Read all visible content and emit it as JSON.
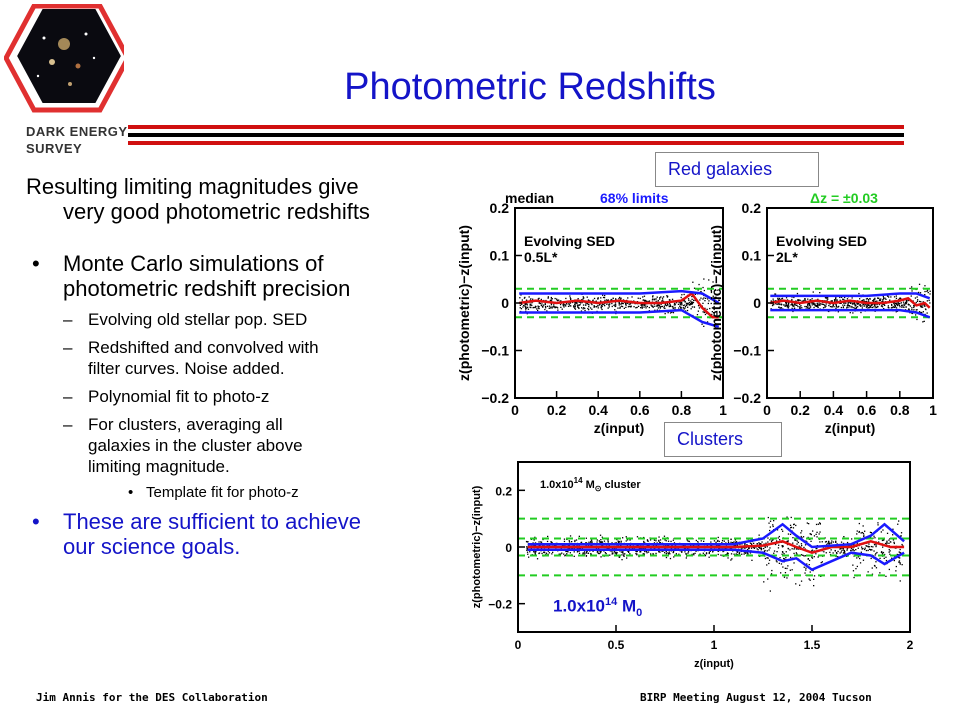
{
  "header": {
    "title": "Photometric Redshifts",
    "org_line1": "DARK ENERGY",
    "org_line2": "SURVEY",
    "logo_icon": "des-hexagon-galaxy-logo",
    "rule_colors": [
      "#d01010",
      "#000000",
      "#d01010"
    ]
  },
  "body": {
    "lead_line1": "Resulting limiting magnitudes give",
    "lead_line2": "very good photometric redshifts",
    "bullet1_line1": "Monte Carlo simulations of",
    "bullet1_line2": "photometric redshift precision",
    "sub1": "Evolving old stellar pop. SED",
    "sub2_line1": "Redshifted and convolved with",
    "sub2_line2": "filter curves. Noise added.",
    "sub3": "Polynomial fit to photo-z",
    "sub4_line1": "For clusters, averaging all",
    "sub4_line2": "galaxies in the cluster above",
    "sub4_line3": "limiting magnitude.",
    "subsub1": "Template fit for photo-z",
    "conclusion_line1": "These are sufficient to achieve",
    "conclusion_line2": "our science goals."
  },
  "figure": {
    "red_label": "Red galaxies",
    "clusters_label": "Clusters",
    "mass_prefix": "1.0x10",
    "mass_exp": "14",
    "mass_unit": "M",
    "mass_sub": "0",
    "legend_median": "median",
    "legend_limits": "68% limits",
    "legend_dz": "Δz = ±0.03",
    "colors": {
      "median": "#e01010",
      "limits": "#1a1aff",
      "dz": "#22cc22",
      "points": "#000000"
    },
    "panel1_sed_line1": "Evolving SED",
    "panel1_sed_line2": "0.5L*",
    "panel2_sed_line1": "Evolving SED",
    "panel2_sed_line2": "2L*",
    "panel3_label": "1.0x10",
    "panel3_label_exp": "14",
    "panel3_label_unit": "M",
    "panel3_label_sub": "⊙",
    "panel3_label_rest": "cluster",
    "ylabel": "z(photometric)−z(input)",
    "xlabel": "z(input)"
  },
  "chart_data": [
    {
      "type": "scatter",
      "title": "Evolving SED 0.5L*",
      "xlabel": "z(input)",
      "ylabel": "z(photometric)−z(input)",
      "xlim": [
        0,
        1
      ],
      "ylim": [
        -0.2,
        0.2
      ],
      "x_ticks": [
        "0",
        "0.2",
        "0.4",
        "0.6",
        "0.8",
        "1"
      ],
      "y_ticks": [
        "0.2",
        "0.1",
        "0",
        "−0.1",
        "−0.2"
      ],
      "series": [
        {
          "name": "median",
          "x": [
            0.02,
            0.1,
            0.2,
            0.3,
            0.4,
            0.5,
            0.6,
            0.7,
            0.8,
            0.85,
            0.9,
            0.95,
            0.98
          ],
          "y": [
            0.0,
            0.005,
            0.0,
            0.005,
            0.0,
            0.005,
            0.0,
            0.0,
            0.005,
            0.02,
            -0.01,
            -0.03,
            -0.03
          ]
        },
        {
          "name": "68% limits",
          "x": [
            0.02,
            0.2,
            0.4,
            0.6,
            0.8,
            0.9,
            0.98
          ],
          "y": [
            0.02,
            0.02,
            0.02,
            0.02,
            0.025,
            0.02,
            0.0
          ]
        },
        {
          "name": "68% limits",
          "x": [
            0.02,
            0.2,
            0.4,
            0.6,
            0.8,
            0.9,
            0.98
          ],
          "y": [
            -0.02,
            -0.02,
            -0.02,
            -0.02,
            -0.015,
            -0.04,
            -0.05
          ]
        }
      ],
      "hlines": [
        0.03,
        -0.03
      ]
    },
    {
      "type": "scatter",
      "title": "Evolving SED 2L*",
      "xlabel": "z(input)",
      "ylabel": "z(photometric)−z(input)",
      "xlim": [
        0,
        1
      ],
      "ylim": [
        -0.2,
        0.2
      ],
      "x_ticks": [
        "0",
        "0.2",
        "0.4",
        "0.6",
        "0.8",
        "1"
      ],
      "y_ticks": [
        "0.2",
        "0.1",
        "0",
        "−0.1",
        "−0.2"
      ],
      "series": [
        {
          "name": "median",
          "x": [
            0.02,
            0.1,
            0.2,
            0.3,
            0.4,
            0.5,
            0.6,
            0.7,
            0.8,
            0.85,
            0.9,
            0.95,
            0.98
          ],
          "y": [
            0.0,
            0.005,
            0.0,
            0.005,
            0.0,
            0.005,
            0.0,
            0.0,
            0.005,
            0.01,
            -0.005,
            0.0,
            -0.01
          ]
        },
        {
          "name": "68% limits",
          "x": [
            0.02,
            0.2,
            0.4,
            0.6,
            0.8,
            0.9,
            0.98
          ],
          "y": [
            0.015,
            0.015,
            0.015,
            0.015,
            0.02,
            0.02,
            0.01
          ]
        },
        {
          "name": "68% limits",
          "x": [
            0.02,
            0.2,
            0.4,
            0.6,
            0.8,
            0.9,
            0.98
          ],
          "y": [
            -0.015,
            -0.015,
            -0.015,
            -0.015,
            -0.015,
            -0.02,
            -0.03
          ]
        }
      ],
      "hlines": [
        0.03,
        -0.03
      ]
    },
    {
      "type": "scatter",
      "title": "1.0x10^14 M⊙ cluster",
      "xlabel": "z(input)",
      "ylabel": "z(photometric)−z(input)",
      "xlim": [
        0,
        2
      ],
      "ylim": [
        -0.3,
        0.3
      ],
      "x_ticks": [
        "0",
        "0.5",
        "1",
        "1.5",
        "2"
      ],
      "y_ticks": [
        "0.2",
        "0",
        "−0.2"
      ],
      "series": [
        {
          "name": "median",
          "x": [
            0.05,
            0.3,
            0.6,
            0.9,
            1.1,
            1.25,
            1.35,
            1.42,
            1.5,
            1.6,
            1.7,
            1.8,
            1.9,
            1.97
          ],
          "y": [
            0.0,
            0.0,
            0.0,
            0.0,
            0.0,
            0.005,
            0.02,
            0.0,
            -0.02,
            0.0,
            0.0,
            0.02,
            0.0,
            0.0
          ]
        },
        {
          "name": "68% limits",
          "x": [
            0.05,
            0.6,
            1.1,
            1.25,
            1.35,
            1.42,
            1.5,
            1.7,
            1.8,
            1.87,
            1.97
          ],
          "y": [
            0.01,
            0.01,
            0.01,
            0.03,
            0.08,
            0.04,
            0.0,
            0.01,
            0.04,
            0.08,
            0.02
          ]
        },
        {
          "name": "68% limits",
          "x": [
            0.05,
            0.6,
            1.1,
            1.25,
            1.35,
            1.42,
            1.5,
            1.7,
            1.8,
            1.87,
            1.97
          ],
          "y": [
            -0.01,
            -0.01,
            -0.01,
            -0.02,
            -0.05,
            -0.04,
            -0.08,
            -0.02,
            -0.03,
            -0.06,
            -0.02
          ]
        }
      ],
      "hlines": [
        0.1,
        0.03,
        -0.03,
        -0.1
      ]
    }
  ]
}
